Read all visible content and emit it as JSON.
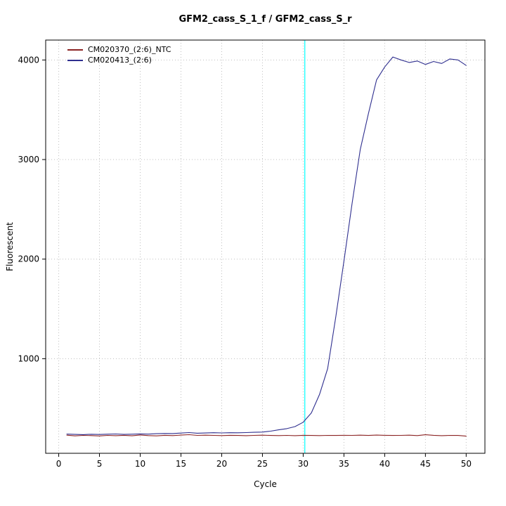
{
  "chart_data": {
    "type": "line",
    "title": "GFM2_cass_S_1_f / GFM2_cass_S_r",
    "xlabel": "Cycle",
    "ylabel": "Fluorescent",
    "xlim": [
      -1.6,
      52.3
    ],
    "ylim": [
      50,
      4200
    ],
    "x_ticks": [
      0,
      5,
      10,
      15,
      20,
      25,
      30,
      35,
      40,
      45,
      50
    ],
    "y_ticks": [
      1000,
      2000,
      3000,
      4000
    ],
    "grid": "dotted",
    "grid_color": "#bfbfbf",
    "legend_position": "top-left",
    "threshold_line": {
      "x": 30.2,
      "color": "#00ffff"
    },
    "x": [
      1,
      2,
      3,
      4,
      5,
      6,
      7,
      8,
      9,
      10,
      11,
      12,
      13,
      14,
      15,
      16,
      17,
      18,
      19,
      20,
      21,
      22,
      23,
      24,
      25,
      26,
      27,
      28,
      29,
      30,
      31,
      32,
      33,
      34,
      35,
      36,
      37,
      38,
      39,
      40,
      41,
      42,
      43,
      44,
      45,
      46,
      47,
      48,
      49,
      50
    ],
    "series": [
      {
        "name": "CM020370_(2:6)_NTC",
        "color": "#8b2323",
        "values": [
          232,
          225,
          230,
          228,
          224,
          230,
          227,
          231,
          226,
          234,
          228,
          225,
          231,
          228,
          233,
          237,
          230,
          232,
          230,
          228,
          231,
          229,
          227,
          230,
          232,
          229,
          228,
          230,
          227,
          231,
          229,
          228,
          230,
          229,
          231,
          230,
          232,
          229,
          233,
          231,
          229,
          230,
          232,
          228,
          236,
          231,
          227,
          230,
          229,
          222
        ]
      },
      {
        "name": "CM020413_(2:6)",
        "color": "#2f2f8f",
        "values": [
          243,
          240,
          238,
          241,
          239,
          242,
          244,
          240,
          242,
          245,
          243,
          247,
          249,
          248,
          253,
          258,
          252,
          254,
          257,
          255,
          257,
          256,
          258,
          261,
          263,
          272,
          286,
          298,
          318,
          362,
          455,
          640,
          900,
          1420,
          1980,
          2560,
          3100,
          3460,
          3800,
          3930,
          4030,
          4000,
          3975,
          3990,
          3955,
          3985,
          3965,
          4010,
          4000,
          3945
        ]
      }
    ]
  }
}
